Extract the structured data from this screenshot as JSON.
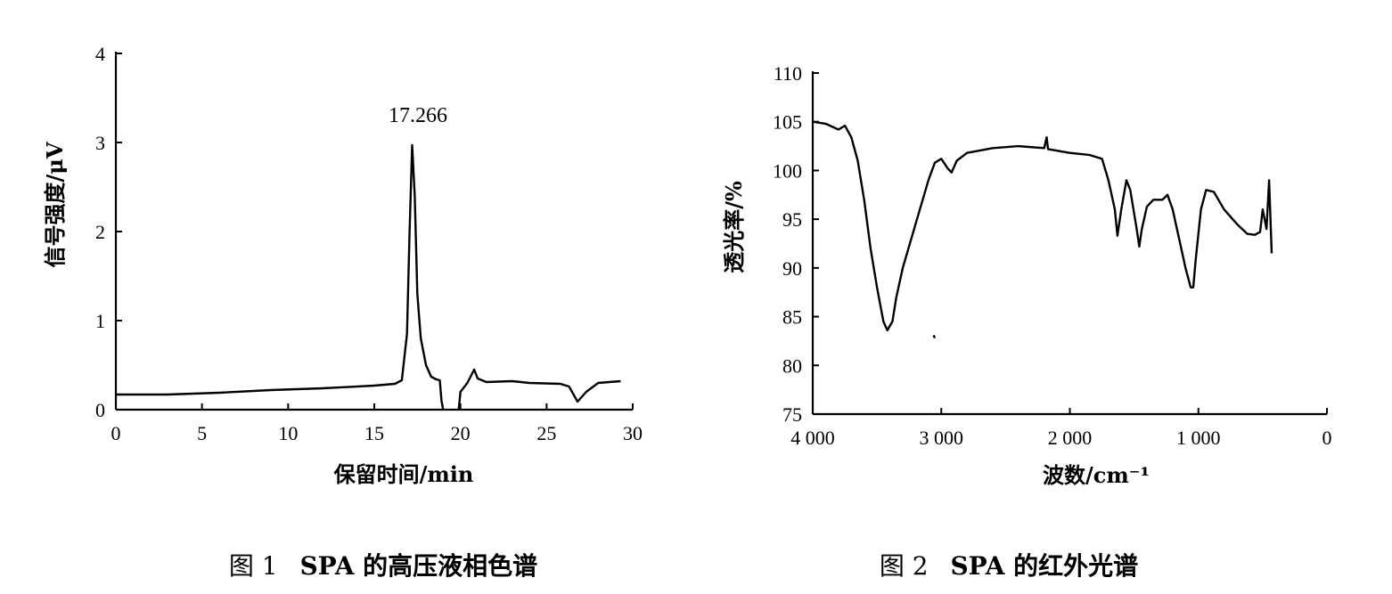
{
  "figures": [
    {
      "caption_prefix": "图 1",
      "caption_text": "SPA 的高压液相色谱"
    },
    {
      "caption_prefix": "图 2",
      "caption_text": "SPA 的红外光谱"
    }
  ],
  "chart_data": [
    {
      "type": "line",
      "title": "",
      "xlabel": "保留时间/min",
      "ylabel": "信号强度/μV",
      "xlim": [
        0,
        30
      ],
      "ylim": [
        0,
        4
      ],
      "xticks": [
        0,
        5,
        10,
        15,
        20,
        25,
        30
      ],
      "xtick_labels": [
        "0",
        "5",
        "10",
        "15",
        "20",
        "25",
        "30"
      ],
      "yticks": [
        0,
        1,
        2,
        3,
        4
      ],
      "ytick_labels": [
        "0",
        "1",
        "2",
        "3",
        "4"
      ],
      "annotation": {
        "text": "17.266",
        "x": 17.266,
        "y": 2.97
      },
      "grid": false,
      "series": [
        {
          "segments": [
            [
              [
                0,
                0.17
              ],
              [
                3,
                0.17
              ],
              [
                6,
                0.19
              ],
              [
                9,
                0.22
              ],
              [
                12,
                0.24
              ],
              [
                15,
                0.27
              ],
              [
                16.2,
                0.29
              ],
              [
                16.6,
                0.33
              ],
              [
                16.9,
                0.85
              ],
              [
                17.05,
                2.0
              ],
              [
                17.2,
                2.97
              ],
              [
                17.35,
                2.4
              ],
              [
                17.5,
                1.3
              ],
              [
                17.7,
                0.8
              ],
              [
                18.0,
                0.5
              ],
              [
                18.3,
                0.37
              ],
              [
                18.6,
                0.34
              ],
              [
                18.8,
                0.33
              ],
              [
                18.9,
                0.1
              ],
              [
                19.0,
                0
              ]
            ],
            [
              [
                19.9,
                0
              ],
              [
                20.0,
                0.2
              ],
              [
                20.4,
                0.3
              ],
              [
                20.8,
                0.45
              ],
              [
                21.0,
                0.35
              ],
              [
                21.5,
                0.31
              ],
              [
                23,
                0.32
              ],
              [
                24,
                0.3
              ],
              [
                25.8,
                0.29
              ],
              [
                26.3,
                0.26
              ],
              [
                26.8,
                0.09
              ],
              [
                27.3,
                0.2
              ],
              [
                28,
                0.3
              ],
              [
                29.3,
                0.32
              ]
            ]
          ]
        }
      ]
    },
    {
      "type": "line",
      "title": "",
      "xlabel": "波数/cm⁻¹",
      "ylabel": "透光率/%",
      "xlim": [
        4000,
        0
      ],
      "ylim": [
        75,
        110
      ],
      "xticks": [
        4000,
        3000,
        2000,
        1000,
        0
      ],
      "xtick_labels": [
        "4 000",
        "3 000",
        "2 000",
        "1 000",
        "0"
      ],
      "yticks": [
        75,
        80,
        85,
        90,
        95,
        100,
        105,
        110
      ],
      "ytick_labels": [
        "75",
        "80",
        "85",
        "90",
        "95",
        "100",
        "105",
        "110"
      ],
      "grid": false,
      "series": [
        {
          "segments": [
            [
              [
                4000,
                105
              ],
              [
                3900,
                104.8
              ],
              [
                3800,
                104.2
              ],
              [
                3750,
                104.6
              ],
              [
                3700,
                103.4
              ],
              [
                3650,
                101
              ],
              [
                3600,
                97
              ],
              [
                3550,
                92
              ],
              [
                3500,
                88
              ],
              [
                3450,
                84.5
              ],
              [
                3420,
                83.6
              ],
              [
                3380,
                84.5
              ],
              [
                3350,
                87
              ],
              [
                3300,
                90
              ],
              [
                3200,
                94.5
              ],
              [
                3100,
                99
              ],
              [
                3050,
                100.8
              ],
              [
                3000,
                101.2
              ],
              [
                2950,
                100.2
              ],
              [
                2920,
                99.8
              ],
              [
                2880,
                101
              ],
              [
                2800,
                101.8
              ],
              [
                2600,
                102.3
              ],
              [
                2400,
                102.5
              ],
              [
                2200,
                102.3
              ],
              [
                2180,
                103.4
              ],
              [
                2170,
                102.2
              ],
              [
                2000,
                101.8
              ],
              [
                1850,
                101.6
              ],
              [
                1750,
                101.2
              ],
              [
                1700,
                99
              ],
              [
                1650,
                96
              ],
              [
                1630,
                93.3
              ],
              [
                1600,
                96
              ],
              [
                1560,
                99
              ],
              [
                1530,
                98
              ],
              [
                1480,
                94
              ],
              [
                1460,
                92.2
              ],
              [
                1440,
                94
              ],
              [
                1400,
                96.3
              ],
              [
                1350,
                97
              ],
              [
                1280,
                97
              ],
              [
                1240,
                97.5
              ],
              [
                1200,
                96
              ],
              [
                1150,
                93
              ],
              [
                1100,
                90
              ],
              [
                1060,
                88
              ],
              [
                1040,
                88
              ],
              [
                1020,
                91
              ],
              [
                980,
                96
              ],
              [
                940,
                98
              ],
              [
                880,
                97.8
              ],
              [
                800,
                96
              ],
              [
                700,
                94.5
              ],
              [
                620,
                93.5
              ],
              [
                560,
                93.4
              ],
              [
                520,
                93.7
              ],
              [
                500,
                96
              ],
              [
                470,
                94
              ],
              [
                450,
                99
              ],
              [
                430,
                91.5
              ]
            ],
            [
              [
                3060,
                83.1
              ],
              [
                3050,
                82.8
              ]
            ]
          ]
        }
      ]
    }
  ]
}
